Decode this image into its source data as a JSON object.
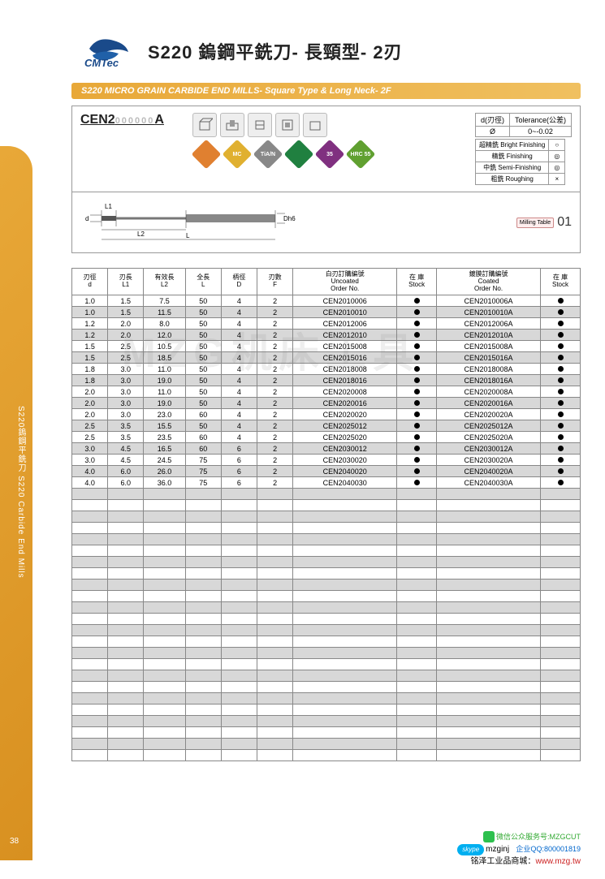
{
  "brand": "CMTec",
  "title_cn": "S220 鎢鋼平銑刀- 長頸型- 2刃",
  "subtitle_en": "S220 MICRO GRAIN CARBIDE END MILLS- Square Type & Long Neck- 2F",
  "side_text": "S220鎢鋼平銑刀  S220 Carbide End Mills",
  "page_number": "38",
  "part_code_prefix": "CEN2",
  "part_code_placeholder": "000000",
  "part_code_suffix": "A",
  "tolerance_table": {
    "h1": "d(刃徑)",
    "h2": "Tolerance(公差)",
    "r1c1": "Ø",
    "r1c2": "0~-0.02"
  },
  "finishing": [
    {
      "label": "超精銑 Bright Finishing",
      "sym": "○"
    },
    {
      "label": "精銑 Finishing",
      "sym": "◎"
    },
    {
      "label": "中銑 Semi-Finishing",
      "sym": "◎"
    },
    {
      "label": "粗銑 Roughing",
      "sym": "×"
    }
  ],
  "diamonds": [
    {
      "color": "#e08030",
      "label": ""
    },
    {
      "color": "#e0b030",
      "label": "MC"
    },
    {
      "color": "#888888",
      "label": "TiA/N"
    },
    {
      "color": "#208040",
      "label": ""
    },
    {
      "color": "#803080",
      "label": "35"
    },
    {
      "color": "#60a030",
      "label": "HRC\n55"
    }
  ],
  "milling_table": {
    "badge": "Milling\nTable",
    "num": "01"
  },
  "diagram_labels": {
    "L1": "L1",
    "d": "d",
    "L2": "L2",
    "L": "L",
    "Dh6": "Dh6"
  },
  "columns": [
    {
      "l1": "刃徑",
      "l2": "d"
    },
    {
      "l1": "刃長",
      "l2": "L1"
    },
    {
      "l1": "有效長",
      "l2": "L2"
    },
    {
      "l1": "全長",
      "l2": "L"
    },
    {
      "l1": "柄徑",
      "l2": "D"
    },
    {
      "l1": "刃數",
      "l2": "F"
    },
    {
      "l1": "白刃訂購編號",
      "l2": "Uncoated",
      "l3": "Order No."
    },
    {
      "l1": "在 庫",
      "l2": "Stock"
    },
    {
      "l1": "鍍膜訂購編號",
      "l2": "Coated",
      "l3": "Order No."
    },
    {
      "l1": "在 庫",
      "l2": "Stock"
    }
  ],
  "rows": [
    [
      "1.0",
      "1.5",
      "7.5",
      "50",
      "4",
      "2",
      "CEN2010006",
      "●",
      "CEN2010006A",
      "●"
    ],
    [
      "1.0",
      "1.5",
      "11.5",
      "50",
      "4",
      "2",
      "CEN2010010",
      "●",
      "CEN2010010A",
      "●"
    ],
    [
      "1.2",
      "2.0",
      "8.0",
      "50",
      "4",
      "2",
      "CEN2012006",
      "●",
      "CEN2012006A",
      "●"
    ],
    [
      "1.2",
      "2.0",
      "12.0",
      "50",
      "4",
      "2",
      "CEN2012010",
      "●",
      "CEN2012010A",
      "●"
    ],
    [
      "1.5",
      "2.5",
      "10.5",
      "50",
      "4",
      "2",
      "CEN2015008",
      "●",
      "CEN2015008A",
      "●"
    ],
    [
      "1.5",
      "2.5",
      "18.5",
      "50",
      "4",
      "2",
      "CEN2015016",
      "●",
      "CEN2015016A",
      "●"
    ],
    [
      "1.8",
      "3.0",
      "11.0",
      "50",
      "4",
      "2",
      "CEN2018008",
      "●",
      "CEN2018008A",
      "●"
    ],
    [
      "1.8",
      "3.0",
      "19.0",
      "50",
      "4",
      "2",
      "CEN2018016",
      "●",
      "CEN2018016A",
      "●"
    ],
    [
      "2.0",
      "3.0",
      "11.0",
      "50",
      "4",
      "2",
      "CEN2020008",
      "●",
      "CEN2020008A",
      "●"
    ],
    [
      "2.0",
      "3.0",
      "19.0",
      "50",
      "4",
      "2",
      "CEN2020016",
      "●",
      "CEN2020016A",
      "●"
    ],
    [
      "2.0",
      "3.0",
      "23.0",
      "60",
      "4",
      "2",
      "CEN2020020",
      "●",
      "CEN2020020A",
      "●"
    ],
    [
      "2.5",
      "3.5",
      "15.5",
      "50",
      "4",
      "2",
      "CEN2025012",
      "●",
      "CEN2025012A",
      "●"
    ],
    [
      "2.5",
      "3.5",
      "23.5",
      "60",
      "4",
      "2",
      "CEN2025020",
      "●",
      "CEN2025020A",
      "●"
    ],
    [
      "3.0",
      "4.5",
      "16.5",
      "60",
      "6",
      "2",
      "CEN2030012",
      "●",
      "CEN2030012A",
      "●"
    ],
    [
      "3.0",
      "4.5",
      "24.5",
      "75",
      "6",
      "2",
      "CEN2030020",
      "●",
      "CEN2030020A",
      "●"
    ],
    [
      "4.0",
      "6.0",
      "26.0",
      "75",
      "6",
      "2",
      "CEN2040020",
      "●",
      "CEN2040020A",
      "●"
    ],
    [
      "4.0",
      "6.0",
      "36.0",
      "75",
      "6",
      "2",
      "CEN2040030",
      "●",
      "CEN2040030A",
      "●"
    ]
  ],
  "empty_rows": 24,
  "col_widths": [
    "38px",
    "38px",
    "44px",
    "38px",
    "38px",
    "38px",
    "110px",
    "42px",
    "110px",
    "42px"
  ],
  "watermark": "MZG机床工具",
  "footer": {
    "wechat": "微信公众服务号:MZGCUT",
    "skype": "mzginj",
    "qq_label": "企业QQ:",
    "qq_num": "800001819",
    "shop_label": "铭泽工业品商城：",
    "url": "www.mzg.tw"
  }
}
